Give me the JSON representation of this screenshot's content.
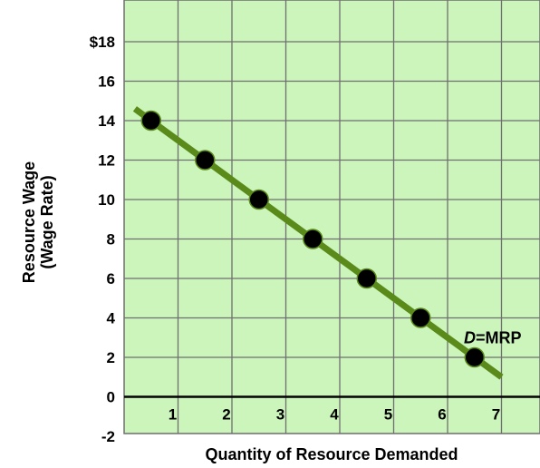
{
  "chart_data": {
    "type": "line",
    "title": "",
    "xlabel": "Quantity of Resource Demanded",
    "ylabel_line1": "Resource Wage",
    "ylabel_line2": "(Wage Rate)",
    "xlim": [
      0,
      7.8
    ],
    "ylim": [
      -2,
      19.5
    ],
    "x_ticks": [
      "1",
      "2",
      "3",
      "4",
      "5",
      "6",
      "7"
    ],
    "y_ticks": [
      {
        "value": 18,
        "label": "$18"
      },
      {
        "value": 16,
        "label": "16"
      },
      {
        "value": 14,
        "label": "14"
      },
      {
        "value": 12,
        "label": "12"
      },
      {
        "value": 10,
        "label": "10"
      },
      {
        "value": 8,
        "label": "8"
      },
      {
        "value": 6,
        "label": "6"
      },
      {
        "value": 4,
        "label": "4"
      },
      {
        "value": 2,
        "label": "2"
      },
      {
        "value": 0,
        "label": "0"
      },
      {
        "value": -2,
        "label": "-2"
      }
    ],
    "grid": true,
    "series": [
      {
        "name": "D=MRP",
        "name_italic": "D",
        "name_rest": "=MRP",
        "line": {
          "x": [
            0.2,
            7.0
          ],
          "y": [
            14.6,
            1.0
          ]
        },
        "points": {
          "x": [
            0.5,
            1.5,
            2.5,
            3.5,
            4.5,
            5.5,
            6.5
          ],
          "y": [
            14,
            12,
            10,
            8,
            6,
            4,
            2
          ]
        }
      }
    ],
    "colors": {
      "plot_background": "#ccf5bc",
      "grid": "#6f6f6f",
      "line": "#5a8a1a",
      "points": "#000000",
      "axis": "#000000"
    }
  }
}
